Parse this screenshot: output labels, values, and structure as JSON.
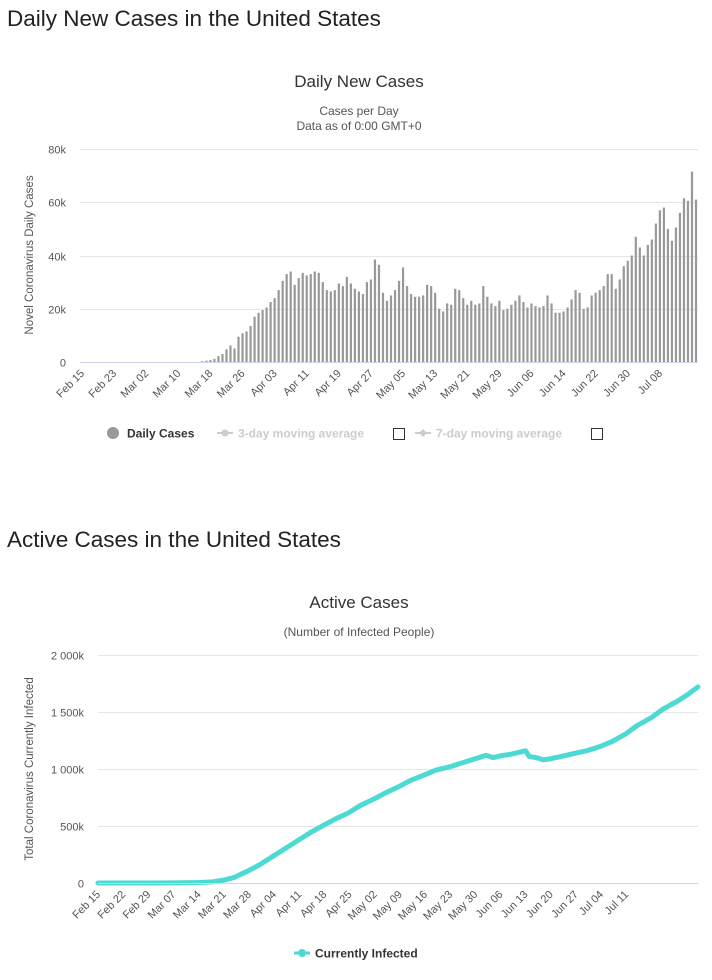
{
  "sections": [
    {
      "heading": "Daily New Cases in the United States",
      "chart_data": {
        "type": "bar",
        "title": "Daily New Cases",
        "subtitle_lines": [
          "Cases per Day",
          "Data as of 0:00 GMT+0"
        ],
        "xlabel": "",
        "ylabel": "Novel Coronavirus Daily Cases",
        "ylim": [
          0,
          80000
        ],
        "y_ticks": [
          0,
          20000,
          40000,
          60000,
          80000
        ],
        "y_tick_labels": [
          "0",
          "20k",
          "40k",
          "60k",
          "80k"
        ],
        "x_tick_labels": [
          "Feb 15",
          "Feb 23",
          "Mar 02",
          "Mar 10",
          "Mar 18",
          "Mar 26",
          "Apr 03",
          "Apr 11",
          "Apr 19",
          "Apr 27",
          "May 05",
          "May 13",
          "May 21",
          "May 29",
          "Jun 06",
          "Jun 14",
          "Jun 22",
          "Jun 30",
          "Jul 08"
        ],
        "x_tick_every": 8,
        "categories_start": "Feb 15",
        "grid": "horizontal",
        "series": [
          {
            "name": "Daily Cases",
            "color": "#999999",
            "values": [
              0,
              0,
              0,
              0,
              0,
              0,
              0,
              0,
              0,
              0,
              0,
              0,
              0,
              0,
              0,
              0,
              0,
              0,
              0,
              0,
              0,
              0,
              0,
              0,
              0,
              0,
              0,
              0,
              0,
              0,
              300,
              500,
              700,
              1200,
              2200,
              3000,
              4800,
              6200,
              5100,
              9500,
              10800,
              11500,
              13500,
              17000,
              18500,
              19500,
              20500,
              22500,
              24000,
              27000,
              30500,
              33000,
              34000,
              29000,
              31500,
              33500,
              32500,
              33000,
              34000,
              33500,
              30000,
              27000,
              26500,
              27000,
              29500,
              28500,
              32000,
              29500,
              27500,
              26500,
              25500,
              30000,
              31000,
              38500,
              36500,
              26000,
              23000,
              25000,
              27000,
              30500,
              35500,
              28500,
              25500,
              24500,
              24500,
              25000,
              29000,
              28500,
              26000,
              20000,
              19000,
              22000,
              21500,
              27500,
              27000,
              24000,
              21500,
              23000,
              21500,
              22000,
              28500,
              24500,
              22000,
              21000,
              23000,
              19500,
              20000,
              21500,
              23000,
              25000,
              22500,
              20500,
              22000,
              21000,
              20500,
              21000,
              25000,
              22000,
              18500,
              18500,
              19000,
              20500,
              23500,
              27000,
              26000,
              20000,
              20500,
              25000,
              26000,
              27000,
              28500,
              33000,
              33000,
              27500,
              31000,
              36000,
              38000,
              40000,
              47000,
              43000,
              40000,
              44000,
              46000,
              52000,
              57000,
              58000,
              50000,
              45500,
              50500,
              56000,
              61500,
              60500,
              71500,
              61000
            ]
          },
          {
            "name": "3-day moving average",
            "color": "#cccccc",
            "checked": false
          },
          {
            "name": "7-day moving average",
            "color": "#cccccc",
            "checked": false
          }
        ]
      }
    },
    {
      "heading": "Active Cases in the United States",
      "chart_data": {
        "type": "line",
        "title": "Active Cases",
        "subtitle": "(Number of Infected People)",
        "xlabel": "",
        "ylabel": "Total Coronavirus Currently Infected",
        "ylim": [
          0,
          2000000
        ],
        "y_ticks": [
          0,
          500000,
          1000000,
          1500000,
          2000000
        ],
        "y_tick_labels": [
          "0",
          "500k",
          "1 000k",
          "1 500k",
          "2 000k"
        ],
        "x_tick_labels": [
          "Feb 15",
          "Feb 22",
          "Feb 29",
          "Mar 07",
          "Mar 14",
          "Mar 21",
          "Mar 28",
          "Apr 04",
          "Apr 11",
          "Apr 18",
          "Apr 25",
          "May 02",
          "May 09",
          "May 16",
          "May 23",
          "May 30",
          "Jun 06",
          "Jun 13",
          "Jun 20",
          "Jun 27",
          "Jul 04",
          "Jul 11"
        ],
        "x_tick_every": 7,
        "categories_start": "Feb 15",
        "grid": "horizontal",
        "series": [
          {
            "name": "Currently Infected",
            "color": "#4dd9d4",
            "anchors": [
              [
                0,
                0
              ],
              [
                14,
                500
              ],
              [
                21,
                1500
              ],
              [
                28,
                4000
              ],
              [
                32,
                10000
              ],
              [
                35,
                25000
              ],
              [
                38,
                50000
              ],
              [
                42,
                110000
              ],
              [
                45,
                160000
              ],
              [
                49,
                240000
              ],
              [
                52,
                300000
              ],
              [
                56,
                380000
              ],
              [
                59,
                440000
              ],
              [
                63,
                510000
              ],
              [
                66,
                560000
              ],
              [
                70,
                620000
              ],
              [
                73,
                680000
              ],
              [
                77,
                740000
              ],
              [
                80,
                790000
              ],
              [
                84,
                850000
              ],
              [
                87,
                900000
              ],
              [
                91,
                950000
              ],
              [
                94,
                990000
              ],
              [
                98,
                1020000
              ],
              [
                101,
                1050000
              ],
              [
                105,
                1090000
              ],
              [
                108,
                1120000
              ],
              [
                110,
                1100000
              ],
              [
                112,
                1115000
              ],
              [
                115,
                1130000
              ],
              [
                119,
                1160000
              ],
              [
                120,
                1110000
              ],
              [
                122,
                1100000
              ],
              [
                124,
                1080000
              ],
              [
                126,
                1090000
              ],
              [
                129,
                1110000
              ],
              [
                133,
                1140000
              ],
              [
                136,
                1160000
              ],
              [
                140,
                1200000
              ],
              [
                143,
                1240000
              ],
              [
                147,
                1310000
              ],
              [
                150,
                1380000
              ],
              [
                154,
                1450000
              ],
              [
                157,
                1520000
              ],
              [
                161,
                1590000
              ],
              [
                164,
                1650000
              ],
              [
                167,
                1720000
              ]
            ]
          }
        ]
      }
    }
  ]
}
